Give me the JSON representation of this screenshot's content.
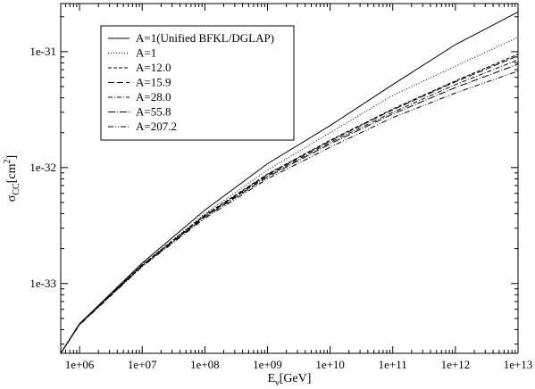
{
  "chart_data": {
    "type": "line",
    "title": "",
    "xlabel": {
      "main": "E",
      "sub": "ν",
      "rest": "[GeV]"
    },
    "ylabel": {
      "main": "σ",
      "sub": "CC",
      "rest": "[cm",
      "sup": "2",
      "end": "]"
    },
    "xscale": "log",
    "yscale": "log",
    "xlim": [
      500000,
      10000000000000
    ],
    "ylim": [
      2.5e-34,
      2.6e-31
    ],
    "xticks": [
      {
        "value": 1000000,
        "label": "1e+06"
      },
      {
        "value": 10000000,
        "label": "1e+07"
      },
      {
        "value": 100000000,
        "label": "1e+08"
      },
      {
        "value": 1000000000,
        "label": "1e+09"
      },
      {
        "value": 10000000000,
        "label": "1e+10"
      },
      {
        "value": 100000000000,
        "label": "1e+11"
      },
      {
        "value": 1000000000000,
        "label": "1e+12"
      },
      {
        "value": 10000000000000,
        "label": "1e+13"
      }
    ],
    "yticks": [
      {
        "value": 1e-33,
        "label": "1e-33"
      },
      {
        "value": 1e-32,
        "label": "1e-32"
      },
      {
        "value": 1e-31,
        "label": "1e-31"
      }
    ],
    "grid": false,
    "legend_position": "top-left",
    "x": [
      500000,
      1000000,
      10000000,
      100000000,
      1000000000,
      10000000000,
      100000000000,
      1000000000000,
      10000000000000
    ],
    "series": [
      {
        "name": "A=1(Unified BFKL/DGLAP)",
        "dash": "solid",
        "values": [
          2.5e-34,
          4.5e-34,
          1.5e-33,
          4.3e-33,
          1.08e-32,
          2.3e-32,
          5.2e-32,
          1.15e-31,
          2.2e-31
        ]
      },
      {
        "name": "A=1",
        "dash": "dotted",
        "values": [
          2.5e-34,
          4.5e-34,
          1.45e-33,
          4e-33,
          9.5e-33,
          2e-32,
          4.2e-32,
          7.5e-32,
          1.33e-31
        ]
      },
      {
        "name": "A=12.0",
        "dash": "dashed",
        "values": [
          2.5e-34,
          4.5e-34,
          1.45e-33,
          3.9e-33,
          8.8e-33,
          1.72e-32,
          3.2e-32,
          5.6e-32,
          9.5e-32
        ]
      },
      {
        "name": "A=15.9",
        "dash": "longdash",
        "values": [
          2.5e-34,
          4.5e-34,
          1.44e-33,
          3.85e-33,
          8.7e-33,
          1.7e-32,
          3.15e-32,
          5.5e-32,
          9.2e-32
        ]
      },
      {
        "name": "A=28.0",
        "dash": "dashdot",
        "values": [
          2.5e-34,
          4.45e-34,
          1.43e-33,
          3.8e-33,
          8.5e-33,
          1.65e-32,
          3e-32,
          5.2e-32,
          8.5e-32
        ]
      },
      {
        "name": "A=55.8",
        "dash": "longdashdot",
        "values": [
          2.5e-34,
          4.45e-34,
          1.42e-33,
          3.75e-33,
          8.3e-33,
          1.6e-32,
          2.9e-32,
          4.9e-32,
          7.8e-32
        ]
      },
      {
        "name": "A=207.2",
        "dash": "dashdotdot",
        "values": [
          2.5e-34,
          4.4e-34,
          1.4e-33,
          3.65e-33,
          8e-33,
          1.5e-32,
          2.7e-32,
          4.4e-32,
          6.8e-32
        ]
      }
    ]
  }
}
